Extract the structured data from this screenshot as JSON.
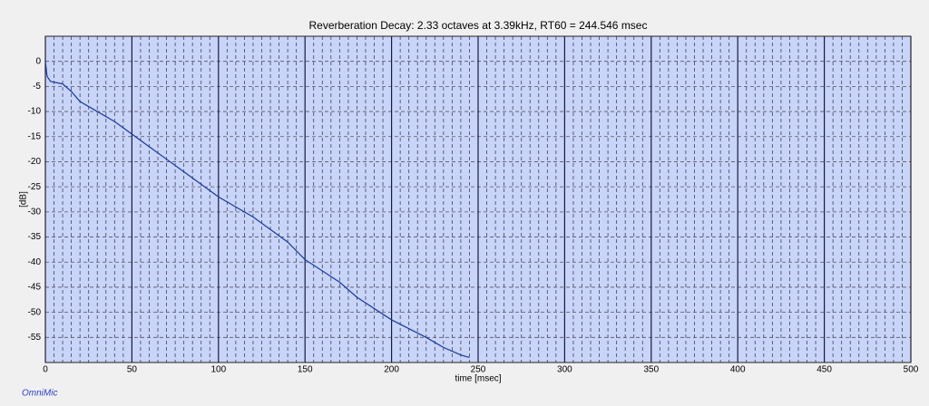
{
  "chart_data": {
    "type": "line",
    "title": "Reverberation Decay: 2.33 octaves at 3.39kHz, RT60 = 244.546 msec",
    "x_label": "time [msec]",
    "y_label": "[dB]",
    "annotation": "OmniMic",
    "x": [
      0,
      1,
      3,
      10,
      15,
      20,
      30,
      40,
      50,
      60,
      70,
      80,
      100,
      120,
      140,
      150,
      170,
      180,
      200,
      220,
      230,
      240,
      245
    ],
    "series": [
      {
        "name": "decay",
        "color": "#1a3a99",
        "values": [
          0,
          -3,
          -4,
          -4.5,
          -6,
          -8,
          -10,
          -12,
          -14.5,
          -17,
          -19.5,
          -22,
          -27,
          -31,
          -36,
          -39.5,
          -44,
          -47,
          -51.5,
          -55,
          -57,
          -58.5,
          -59
        ]
      }
    ],
    "xlim": [
      0,
      500
    ],
    "xticks": [
      0,
      50,
      100,
      150,
      200,
      250,
      300,
      350,
      400,
      450,
      500
    ],
    "ylim": [
      -60,
      5
    ],
    "yticks": [
      0,
      -5,
      -10,
      -15,
      -20,
      -25,
      -30,
      -35,
      -40,
      -45,
      -50,
      -55
    ],
    "grid": true,
    "plot_background": "#c8d4f8"
  }
}
